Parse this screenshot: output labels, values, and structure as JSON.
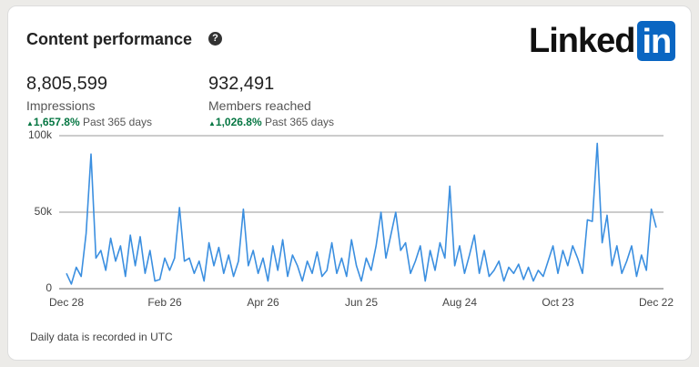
{
  "header": {
    "title": "Content performance",
    "logo": {
      "text": "Linked",
      "badge": "in"
    }
  },
  "metrics": [
    {
      "value": "8,805,599",
      "label": "Impressions",
      "change": "1,657.8%",
      "period": "Past 365 days"
    },
    {
      "value": "932,491",
      "label": "Members reached",
      "change": "1,026.8%",
      "period": "Past 365 days"
    }
  ],
  "chart_data": {
    "type": "line",
    "color": "#3b8fe0",
    "grid": true,
    "ylim": [
      0,
      100000
    ],
    "yticks": [
      0,
      {
        "value": 50000,
        "label": "50k"
      },
      {
        "value": 100000,
        "label": "100k"
      }
    ],
    "categories": [
      "Dec 28",
      null,
      null,
      null,
      null,
      null,
      null,
      null,
      null,
      null,
      null,
      null,
      null,
      null,
      null,
      null,
      null,
      null,
      null,
      null,
      "Feb 26",
      null,
      null,
      null,
      null,
      null,
      null,
      null,
      null,
      null,
      null,
      null,
      null,
      null,
      null,
      null,
      null,
      null,
      null,
      null,
      "Apr 26",
      null,
      null,
      null,
      null,
      null,
      null,
      null,
      null,
      null,
      null,
      null,
      null,
      null,
      null,
      null,
      null,
      null,
      null,
      null,
      "Jun 25",
      null,
      null,
      null,
      null,
      null,
      null,
      null,
      null,
      null,
      null,
      null,
      null,
      null,
      null,
      null,
      null,
      null,
      null,
      null,
      "Aug 24",
      null,
      null,
      null,
      null,
      null,
      null,
      null,
      null,
      null,
      null,
      null,
      null,
      null,
      null,
      null,
      null,
      null,
      null,
      null,
      "Oct 23",
      null,
      null,
      null,
      null,
      null,
      null,
      null,
      null,
      null,
      null,
      null,
      null,
      null,
      null,
      null,
      null,
      null,
      null,
      null,
      "Dec 22"
    ],
    "values": [
      10000,
      3000,
      14000,
      8000,
      36000,
      88000,
      20000,
      25000,
      12000,
      33000,
      18000,
      28000,
      8000,
      35000,
      15000,
      34000,
      10000,
      25000,
      5000,
      6000,
      20000,
      12000,
      20000,
      53000,
      18000,
      20000,
      10000,
      18000,
      5000,
      30000,
      15000,
      27000,
      10000,
      22000,
      8000,
      18000,
      52000,
      15000,
      25000,
      10000,
      20000,
      5000,
      28000,
      12000,
      32000,
      8000,
      22000,
      15000,
      5000,
      18000,
      10000,
      24000,
      8000,
      12000,
      30000,
      10000,
      20000,
      8000,
      32000,
      15000,
      5000,
      20000,
      12000,
      28000,
      50000,
      20000,
      35000,
      50000,
      25000,
      30000,
      10000,
      18000,
      28000,
      5000,
      25000,
      12000,
      30000,
      20000,
      67000,
      15000,
      28000,
      10000,
      22000,
      35000,
      10000,
      25000,
      8000,
      12000,
      18000,
      5000,
      14000,
      10000,
      16000,
      6000,
      14000,
      5000,
      12000,
      8000,
      18000,
      28000,
      10000,
      25000,
      15000,
      28000,
      20000,
      10000,
      45000,
      44000,
      95000,
      30000,
      48000,
      15000,
      28000,
      10000,
      18000,
      28000,
      8000,
      22000,
      12000,
      52000,
      40000
    ]
  },
  "footer": "Daily data is recorded in UTC"
}
